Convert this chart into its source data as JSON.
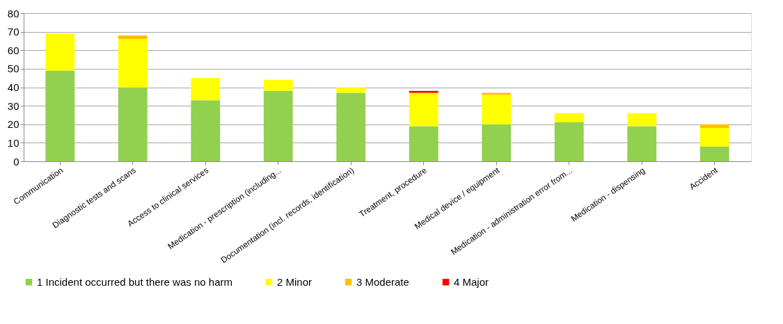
{
  "chart_data": {
    "type": "bar",
    "stacked": true,
    "categories": [
      "Communication",
      "Diagnostic tests and scans",
      "Access to clinical services",
      "Medication - prescription (including...",
      "Documentation (incl. records, identification)",
      "Treatment, procedure",
      "Medical device / equipment",
      "Medication - administration error from...",
      "Medication - dispensing",
      "Accident"
    ],
    "series": [
      {
        "name": "1  Incident occurred but there was no harm",
        "color": "#92d050",
        "values": [
          49,
          40,
          33,
          38,
          37,
          19,
          20,
          21,
          19,
          8
        ]
      },
      {
        "name": "2  Minor",
        "color": "#ffff00",
        "values": [
          20,
          26,
          12,
          6,
          3,
          18,
          16,
          5,
          7,
          10
        ]
      },
      {
        "name": "3  Moderate",
        "color": "#ffc000",
        "values": [
          null,
          2,
          null,
          null,
          null,
          null,
          1,
          null,
          null,
          2
        ]
      },
      {
        "name": "4  Major",
        "color": "#ff0000",
        "values": [
          null,
          null,
          null,
          null,
          null,
          1,
          null,
          null,
          null,
          null
        ]
      }
    ],
    "ylim": [
      0,
      80
    ],
    "yticks": [
      0,
      10,
      20,
      30,
      40,
      50,
      60,
      70,
      80
    ],
    "grid": "y",
    "legend": "bottom"
  }
}
